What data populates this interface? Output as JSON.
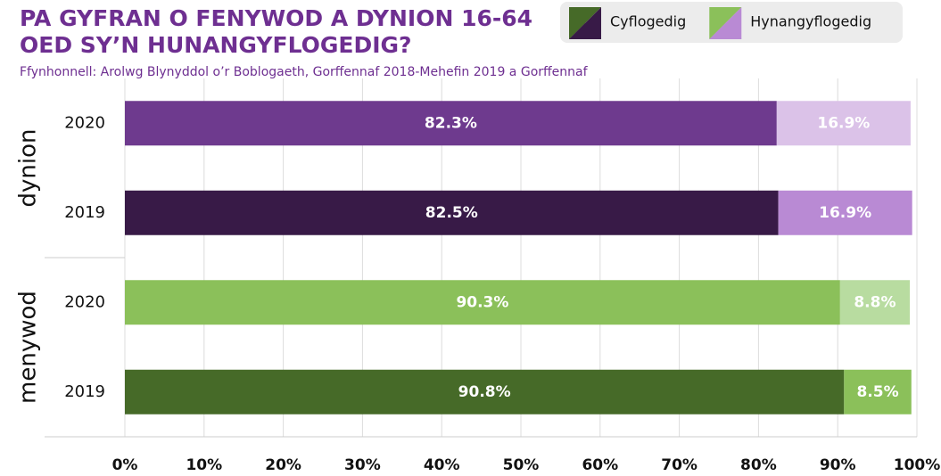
{
  "chart_data": {
    "type": "stacked-barh",
    "title": [
      "PA GYFRAN O FENYWOD A DYNION 16-64",
      "OED SY’N HUNANGYFLOGEDIG?"
    ],
    "subtitle": "Ffynhonnell: Arolwg Blynyddol o’r Boblogaeth, Gorffennaf 2018-Mehefin 2019 a Gorffennaf",
    "groups": [
      {
        "name": "dynion",
        "categories": [
          "2020",
          "2019"
        ]
      },
      {
        "name": "menywod",
        "categories": [
          "2020",
          "2019"
        ]
      }
    ],
    "series": [
      {
        "name": "Cyflogedig",
        "colors": [
          "#6e3a8e",
          "#381a47",
          "#8bc05a",
          "#466a28"
        ],
        "values": [
          82.3,
          82.5,
          90.3,
          90.8
        ],
        "value_labels": [
          "82.3%",
          "82.5%",
          "90.3%",
          "90.8%"
        ]
      },
      {
        "name": "Hynangyflogedig",
        "colors": [
          "#dbc2e8",
          "#b98ad4",
          "#b8dca0",
          "#8bc05a"
        ],
        "values": [
          16.9,
          16.9,
          8.8,
          8.5
        ],
        "value_labels": [
          "16.9%",
          "16.9%",
          "8.8%",
          "8.5%"
        ]
      }
    ],
    "xlim": [
      0,
      100
    ],
    "xticks": [
      {
        "value": 0,
        "label": "0%"
      },
      {
        "value": 10,
        "label": "10%"
      },
      {
        "value": 20,
        "label": "20%"
      },
      {
        "value": 30,
        "label": "30%"
      },
      {
        "value": 40,
        "label": "40%"
      },
      {
        "value": 50,
        "label": "50%"
      },
      {
        "value": 60,
        "label": "60%"
      },
      {
        "value": 70,
        "label": "70%"
      },
      {
        "value": 80,
        "label": "80%"
      },
      {
        "value": 90,
        "label": "90%"
      },
      {
        "value": 100,
        "label": "100%"
      }
    ],
    "grid": true,
    "legend": "top-right"
  }
}
